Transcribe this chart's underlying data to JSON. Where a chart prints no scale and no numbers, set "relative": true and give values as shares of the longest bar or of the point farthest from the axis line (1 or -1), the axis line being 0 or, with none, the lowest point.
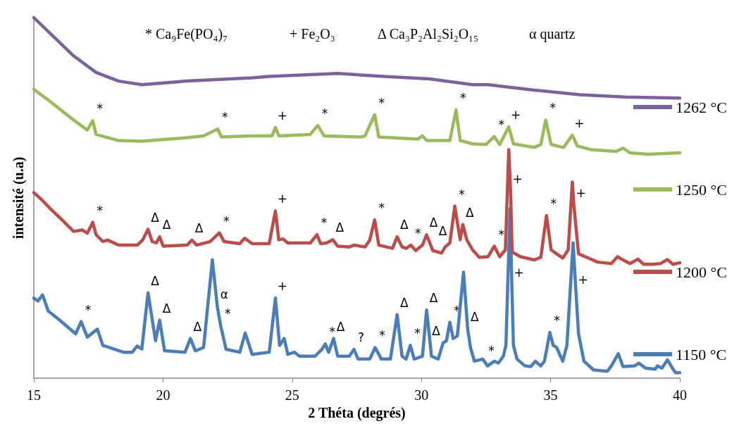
{
  "chart_data": {
    "type": "line",
    "relative": true,
    "xlabel": "2 Théta (degrés)",
    "ylabel": "intensité (u.a)",
    "xlim": [
      15,
      40
    ],
    "xticks": [
      15,
      20,
      25,
      30,
      35,
      40
    ],
    "grid": false,
    "legend": "right",
    "marker": "none",
    "line_style": "solid",
    "series": [
      {
        "name": "1150 °C",
        "color": "#4a7ebb",
        "x": [
          15.0,
          15.16,
          15.34,
          15.56,
          15.9,
          16.62,
          16.83,
          17.07,
          17.46,
          17.67,
          18.47,
          18.81,
          19.0,
          19.18,
          19.42,
          19.71,
          19.87,
          20.06,
          20.85,
          21.06,
          21.25,
          21.57,
          21.91,
          22.1,
          22.23,
          22.44,
          22.97,
          23.18,
          23.45,
          24.11,
          24.35,
          24.51,
          24.69,
          24.83,
          25.09,
          25.28,
          25.88,
          26.15,
          26.28,
          26.41,
          26.6,
          26.76,
          27.21,
          27.39,
          27.55,
          28.0,
          28.21,
          28.45,
          28.8,
          29.06,
          29.25,
          29.41,
          29.57,
          29.72,
          30.04,
          30.2,
          30.39,
          30.65,
          30.84,
          30.97,
          31.1,
          31.23,
          31.39,
          31.63,
          31.79,
          31.9,
          32.05,
          32.37,
          32.56,
          32.82,
          32.98,
          33.17,
          33.27,
          33.43,
          33.5,
          33.56,
          33.7,
          34.01,
          34.23,
          34.41,
          34.62,
          34.76,
          34.97,
          35.1,
          35.23,
          35.47,
          35.63,
          35.87,
          35.98,
          36.08,
          36.29,
          36.66,
          37.19,
          37.35,
          37.62,
          37.8,
          38.25,
          38.41,
          38.67,
          39.05,
          39.13,
          39.31,
          39.52,
          39.71,
          39.84,
          40.0
        ],
        "values": [
          0.222,
          0.214,
          0.231,
          0.186,
          0.167,
          0.123,
          0.157,
          0.114,
          0.136,
          0.091,
          0.072,
          0.072,
          0.089,
          0.081,
          0.237,
          0.104,
          0.161,
          0.076,
          0.072,
          0.11,
          0.076,
          0.085,
          0.328,
          0.199,
          0.146,
          0.08,
          0.072,
          0.125,
          0.066,
          0.072,
          0.222,
          0.091,
          0.11,
          0.066,
          0.072,
          0.061,
          0.061,
          0.08,
          0.095,
          0.072,
          0.11,
          0.061,
          0.061,
          0.08,
          0.053,
          0.053,
          0.085,
          0.053,
          0.053,
          0.176,
          0.061,
          0.053,
          0.091,
          0.053,
          0.061,
          0.189,
          0.061,
          0.053,
          0.098,
          0.104,
          0.155,
          0.11,
          0.117,
          0.294,
          0.136,
          0.085,
          0.047,
          0.053,
          0.034,
          0.047,
          0.042,
          0.061,
          0.091,
          0.47,
          0.26,
          0.091,
          0.053,
          0.034,
          0.032,
          0.047,
          0.034,
          0.047,
          0.127,
          0.091,
          0.085,
          0.047,
          0.091,
          0.375,
          0.24,
          0.123,
          0.047,
          0.023,
          0.019,
          0.034,
          0.068,
          0.032,
          0.034,
          0.042,
          0.028,
          0.025,
          0.034,
          0.028,
          0.051,
          0.028,
          0.015,
          0.015
        ]
      },
      {
        "name": "1200 °C",
        "color": "#be4b48",
        "x": [
          15.0,
          15.29,
          15.64,
          16.09,
          16.54,
          16.88,
          17.07,
          17.28,
          17.41,
          17.67,
          17.86,
          18.28,
          19.0,
          19.21,
          19.42,
          19.58,
          19.74,
          19.87,
          20.01,
          20.93,
          21.12,
          21.3,
          21.83,
          22.18,
          22.36,
          22.97,
          23.16,
          23.45,
          24.11,
          24.35,
          24.48,
          24.64,
          24.83,
          25.7,
          25.96,
          26.1,
          26.33,
          26.57,
          26.76,
          27.21,
          27.39,
          27.82,
          28.0,
          28.19,
          28.35,
          28.88,
          29.06,
          29.25,
          29.41,
          29.59,
          29.78,
          30.04,
          30.2,
          30.44,
          30.78,
          30.92,
          31.1,
          31.29,
          31.5,
          31.6,
          31.76,
          31.98,
          32.24,
          32.58,
          32.82,
          33.03,
          33.25,
          33.38,
          33.45,
          33.51,
          33.83,
          34.36,
          34.62,
          34.84,
          35.02,
          35.23,
          35.47,
          35.68,
          35.84,
          35.9,
          36.08,
          36.4,
          36.82,
          37.35,
          37.59,
          37.8,
          38.07,
          38.38,
          38.6,
          38.94,
          39.26,
          39.52,
          39.73,
          40.0
        ],
        "values": [
          0.515,
          0.496,
          0.47,
          0.439,
          0.407,
          0.411,
          0.402,
          0.432,
          0.398,
          0.379,
          0.383,
          0.369,
          0.369,
          0.383,
          0.413,
          0.379,
          0.375,
          0.392,
          0.366,
          0.369,
          0.383,
          0.369,
          0.379,
          0.403,
          0.379,
          0.373,
          0.388,
          0.373,
          0.373,
          0.464,
          0.384,
          0.386,
          0.375,
          0.375,
          0.398,
          0.373,
          0.375,
          0.384,
          0.366,
          0.364,
          0.369,
          0.364,
          0.383,
          0.439,
          0.369,
          0.36,
          0.392,
          0.364,
          0.36,
          0.369,
          0.354,
          0.369,
          0.398,
          0.354,
          0.347,
          0.364,
          0.375,
          0.477,
          0.384,
          0.426,
          0.383,
          0.356,
          0.335,
          0.337,
          0.366,
          0.337,
          0.356,
          0.634,
          0.52,
          0.35,
          0.337,
          0.328,
          0.335,
          0.451,
          0.356,
          0.345,
          0.333,
          0.356,
          0.544,
          0.48,
          0.345,
          0.335,
          0.322,
          0.318,
          0.337,
          0.328,
          0.318,
          0.33,
          0.316,
          0.316,
          0.318,
          0.329,
          0.316,
          0.32
        ]
      },
      {
        "name": "1250 °C",
        "color": "#9bbb59",
        "x": [
          15.0,
          15.64,
          16.54,
          17.07,
          17.28,
          17.41,
          18.28,
          19.18,
          20.93,
          21.57,
          22.12,
          22.26,
          23.45,
          24.22,
          24.35,
          24.48,
          25.7,
          25.99,
          26.23,
          27.66,
          27.82,
          28.19,
          28.35,
          29.86,
          30.04,
          30.2,
          31.1,
          31.34,
          31.5,
          31.98,
          32.5,
          32.82,
          33.03,
          33.38,
          33.56,
          34.36,
          34.62,
          34.81,
          35.02,
          35.5,
          35.84,
          36.03,
          36.56,
          37.54,
          37.8,
          38.07,
          38.78,
          40.0
        ],
        "values": [
          0.801,
          0.767,
          0.716,
          0.688,
          0.714,
          0.676,
          0.659,
          0.657,
          0.667,
          0.672,
          0.691,
          0.669,
          0.672,
          0.672,
          0.695,
          0.672,
          0.676,
          0.701,
          0.672,
          0.669,
          0.672,
          0.731,
          0.669,
          0.663,
          0.672,
          0.659,
          0.659,
          0.744,
          0.659,
          0.65,
          0.648,
          0.67,
          0.648,
          0.697,
          0.65,
          0.64,
          0.648,
          0.716,
          0.648,
          0.64,
          0.674,
          0.644,
          0.634,
          0.629,
          0.638,
          0.625,
          0.621,
          0.625
        ]
      },
      {
        "name": "1262 °C",
        "color": "#7d60a0",
        "x": [
          15.0,
          15.64,
          16.54,
          17.41,
          18.28,
          19.18,
          20.93,
          23.45,
          24.11,
          26.76,
          28.53,
          30.31,
          31.98,
          32.58,
          34.36,
          36.13,
          37.88,
          40.0
        ],
        "values": [
          1,
          0.956,
          0.894,
          0.848,
          0.824,
          0.814,
          0.824,
          0.833,
          0.837,
          0.845,
          0.837,
          0.83,
          0.814,
          0.814,
          0.799,
          0.786,
          0.78,
          0.777
        ]
      }
    ],
    "annotations": [
      "* Ca₉Fe(PO₄)₇",
      "+ Fe₂O₃",
      "Δ Ca₃P₂Al₂Si₂O₁₅",
      "α quartz",
      {
        "text": "*",
        "x": 17.28,
        "y": 0.714
      },
      {
        "text": "*",
        "x": 22.12,
        "y": 0.691
      },
      {
        "text": "+",
        "x": 24.35,
        "y": 0.695
      },
      {
        "text": "*",
        "x": 25.99,
        "y": 0.701
      },
      {
        "text": "*",
        "x": 28.19,
        "y": 0.731
      },
      {
        "text": "*",
        "x": 31.34,
        "y": 0.744
      },
      {
        "text": "*",
        "x": 32.82,
        "y": 0.67
      },
      {
        "text": "+",
        "x": 33.38,
        "y": 0.697
      },
      {
        "text": "*",
        "x": 34.81,
        "y": 0.716
      },
      {
        "text": "+",
        "x": 35.84,
        "y": 0.674
      },
      {
        "text": "*",
        "x": 17.28,
        "y": 0.432
      },
      {
        "text": "Δ",
        "x": 19.42,
        "y": 0.413
      },
      {
        "text": "Δ",
        "x": 19.87,
        "y": 0.392
      },
      {
        "text": "Δ",
        "x": 21.12,
        "y": 0.383
      },
      {
        "text": "*",
        "x": 22.18,
        "y": 0.403
      },
      {
        "text": "+",
        "x": 24.35,
        "y": 0.464
      },
      {
        "text": "*",
        "x": 25.96,
        "y": 0.398
      },
      {
        "text": "Δ",
        "x": 26.57,
        "y": 0.384
      },
      {
        "text": "*",
        "x": 28.19,
        "y": 0.439
      },
      {
        "text": "Δ",
        "x": 29.06,
        "y": 0.392
      },
      {
        "text": "*",
        "x": 29.59,
        "y": 0.369
      },
      {
        "text": "Δ",
        "x": 30.2,
        "y": 0.398
      },
      {
        "text": "Δ",
        "x": 31.1,
        "y": 0.375
      },
      {
        "text": "*",
        "x": 31.29,
        "y": 0.477
      },
      {
        "text": "Δ",
        "x": 31.6,
        "y": 0.426
      },
      {
        "text": "*",
        "x": 32.82,
        "y": 0.366
      },
      {
        "text": "+",
        "x": 33.45,
        "y": 0.52
      },
      {
        "text": "*",
        "x": 34.84,
        "y": 0.451
      },
      {
        "text": "+",
        "x": 35.9,
        "y": 0.48
      },
      {
        "text": "*",
        "x": 16.83,
        "y": 0.157
      },
      {
        "text": "Δ",
        "x": 19.42,
        "y": 0.237
      },
      {
        "text": "Δ",
        "x": 19.87,
        "y": 0.161
      },
      {
        "text": "Δ",
        "x": 21.06,
        "y": 0.11
      },
      {
        "text": "α",
        "x": 22.1,
        "y": 0.199
      },
      {
        "text": "*",
        "x": 22.23,
        "y": 0.146
      },
      {
        "text": "+",
        "x": 24.35,
        "y": 0.222
      },
      {
        "text": "*",
        "x": 26.28,
        "y": 0.095
      },
      {
        "text": "Δ",
        "x": 26.6,
        "y": 0.11
      },
      {
        "text": "?",
        "x": 27.39,
        "y": 0.08
      },
      {
        "text": "*",
        "x": 28.21,
        "y": 0.085
      },
      {
        "text": "Δ",
        "x": 29.06,
        "y": 0.176
      },
      {
        "text": "*",
        "x": 29.57,
        "y": 0.091
      },
      {
        "text": "Δ",
        "x": 30.2,
        "y": 0.189
      },
      {
        "text": "*",
        "x": 31.1,
        "y": 0.155
      },
      {
        "text": "Δ",
        "x": 30.84,
        "y": 0.098
      },
      {
        "text": "Δ",
        "x": 31.79,
        "y": 0.136
      },
      {
        "text": "*",
        "x": 32.98,
        "y": 0.042
      },
      {
        "text": "+",
        "x": 33.5,
        "y": 0.26
      },
      {
        "text": "*",
        "x": 34.97,
        "y": 0.127
      },
      {
        "text": "+",
        "x": 35.98,
        "y": 0.24
      }
    ]
  }
}
